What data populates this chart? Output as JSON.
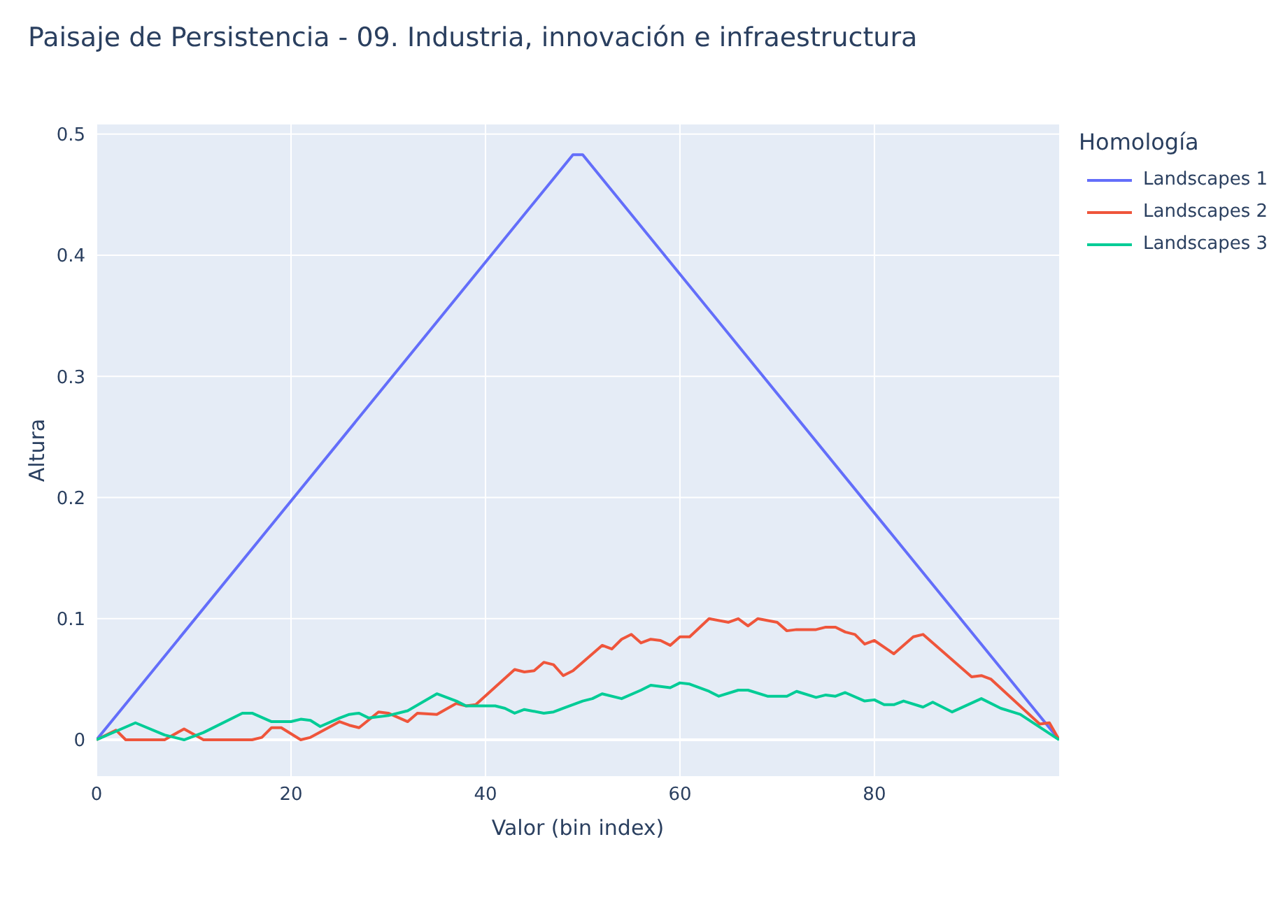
{
  "chart_data": {
    "type": "line",
    "title": "Paisaje de Persistencia - 09. Industria, innovación e infraestructura",
    "xlabel": "Valor (bin index)",
    "ylabel": "Altura",
    "legend_title": "Homología",
    "legend": "top right",
    "grid": true,
    "marker": "none",
    "line_style": "solid",
    "xlim": [
      0,
      99
    ],
    "xticks": [
      0,
      20,
      40,
      60,
      80
    ],
    "ylim": [
      -0.03,
      0.508
    ],
    "yticks": [
      0,
      0.1,
      0.2,
      0.3,
      0.4,
      0.5
    ],
    "series": [
      {
        "name": "Landscapes 1",
        "color": "#636efa",
        "x": [
          0,
          49,
          50,
          99
        ],
        "values": [
          0,
          0.483,
          0.483,
          0
        ]
      },
      {
        "name": "Landscapes 2",
        "color": "#ef553b",
        "x": [
          0,
          2,
          3,
          7,
          9,
          11,
          16,
          17,
          18,
          19,
          21,
          22,
          25,
          26,
          27,
          29,
          30,
          32,
          33,
          35,
          37,
          38,
          39,
          43,
          44,
          45,
          46,
          47,
          48,
          49,
          52,
          53,
          54,
          55,
          56,
          57,
          58,
          59,
          60,
          61,
          63,
          65,
          66,
          67,
          68,
          70,
          71,
          72,
          74,
          75,
          76,
          77,
          78,
          79,
          80,
          82,
          84,
          85,
          90,
          91,
          92,
          97,
          98,
          99
        ],
        "values": [
          0,
          0.008,
          0,
          0,
          0.009,
          0,
          0,
          0.002,
          0.01,
          0.01,
          0,
          0.002,
          0.015,
          0.012,
          0.01,
          0.023,
          0.022,
          0.015,
          0.022,
          0.021,
          0.03,
          0.028,
          0.029,
          0.058,
          0.056,
          0.057,
          0.064,
          0.062,
          0.053,
          0.057,
          0.078,
          0.075,
          0.083,
          0.087,
          0.08,
          0.083,
          0.082,
          0.078,
          0.085,
          0.085,
          0.1,
          0.097,
          0.1,
          0.094,
          0.1,
          0.097,
          0.09,
          0.091,
          0.091,
          0.093,
          0.093,
          0.089,
          0.087,
          0.079,
          0.082,
          0.071,
          0.085,
          0.087,
          0.052,
          0.053,
          0.05,
          0.013,
          0.014,
          0
        ]
      },
      {
        "name": "Landscapes 3",
        "color": "#00cc96",
        "x": [
          0,
          4,
          7,
          9,
          11,
          15,
          16,
          18,
          20,
          21,
          22,
          23,
          25,
          26,
          27,
          28,
          30,
          32,
          35,
          37,
          38,
          39,
          41,
          42,
          43,
          44,
          46,
          47,
          48,
          50,
          51,
          52,
          54,
          56,
          57,
          59,
          60,
          61,
          63,
          64,
          66,
          67,
          69,
          71,
          72,
          74,
          75,
          76,
          77,
          79,
          80,
          81,
          82,
          83,
          85,
          86,
          88,
          91,
          93,
          95,
          99
        ],
        "values": [
          0,
          0.014,
          0.004,
          0,
          0.006,
          0.022,
          0.022,
          0.015,
          0.015,
          0.017,
          0.016,
          0.011,
          0.018,
          0.021,
          0.022,
          0.018,
          0.02,
          0.024,
          0.038,
          0.032,
          0.028,
          0.028,
          0.028,
          0.026,
          0.022,
          0.025,
          0.022,
          0.023,
          0.026,
          0.032,
          0.034,
          0.038,
          0.034,
          0.041,
          0.045,
          0.043,
          0.047,
          0.046,
          0.04,
          0.036,
          0.041,
          0.041,
          0.036,
          0.036,
          0.04,
          0.035,
          0.037,
          0.036,
          0.039,
          0.032,
          0.033,
          0.029,
          0.029,
          0.032,
          0.027,
          0.031,
          0.023,
          0.034,
          0.026,
          0.021,
          0
        ]
      }
    ]
  }
}
